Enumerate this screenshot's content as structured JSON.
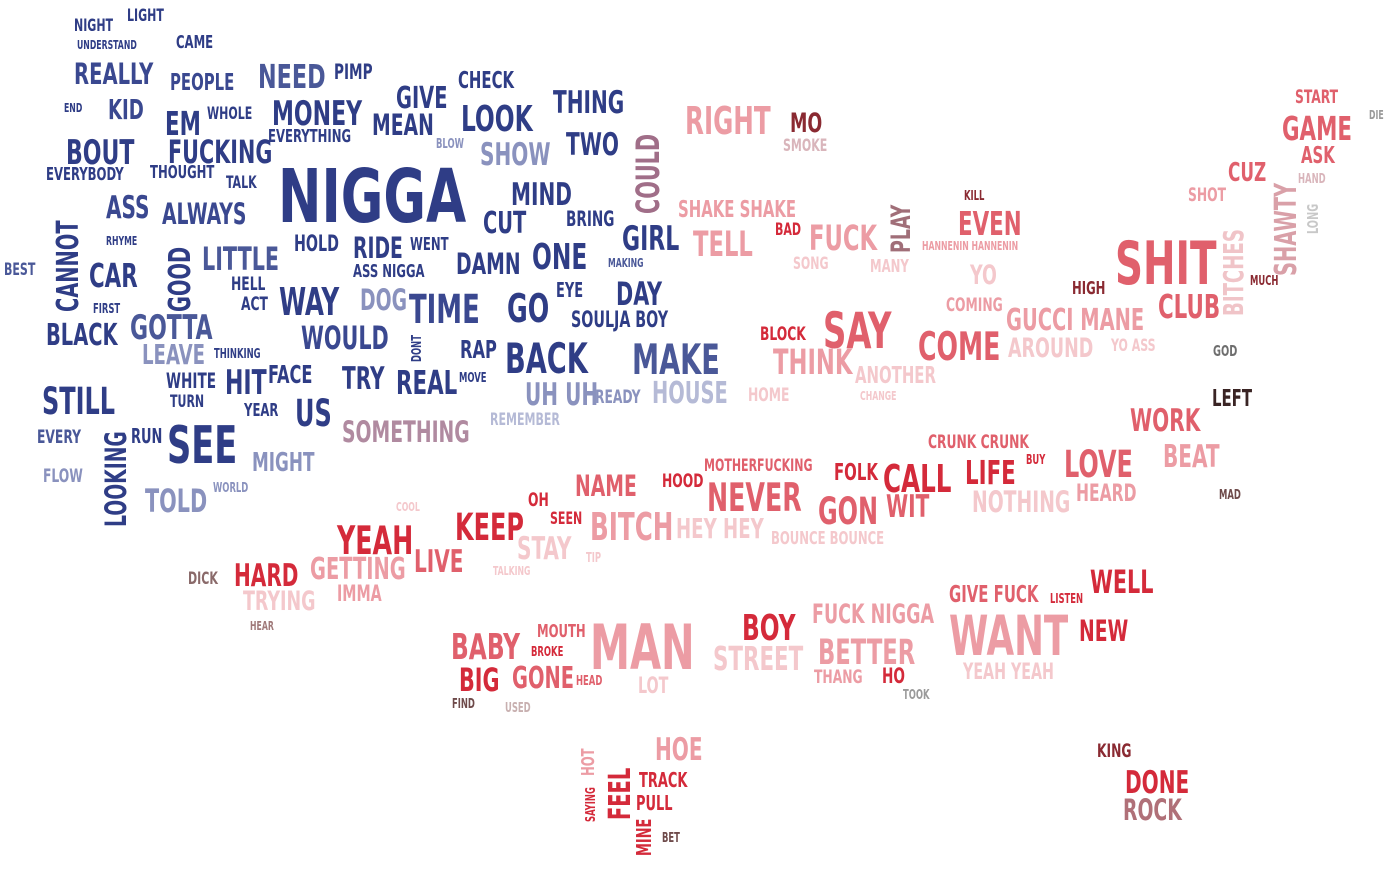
{
  "palette": {
    "blue_dark": "#2f3d86",
    "blue_mid": "#4a5898",
    "blue_light": "#8a92be",
    "blue_pale": "#b5bad6",
    "mauve": "#a06e88",
    "red_dark": "#d42a3a",
    "red_mid": "#e0606c",
    "pink": "#ec9ca4",
    "pink_pale": "#f4c8cc",
    "maroon": "#6e2a2e",
    "brown": "#8a6a6a",
    "grey": "#9a9a9a"
  },
  "words": [
    {
      "text": "NIGGA",
      "color": "#2f3d86"
    },
    {
      "text": "NIGHT",
      "color": "#2f3d86"
    },
    {
      "text": "LIGHT",
      "color": "#2f3d86"
    },
    {
      "text": "UNDERSTAND",
      "color": "#2f3d86"
    },
    {
      "text": "CAME",
      "color": "#2f3d86"
    },
    {
      "text": "REALLY",
      "color": "#3a4890"
    },
    {
      "text": "PEOPLE",
      "color": "#3a4890"
    },
    {
      "text": "NEED",
      "color": "#4a5898"
    },
    {
      "text": "PIMP",
      "color": "#2f3d86"
    },
    {
      "text": "GIVE",
      "color": "#2f3d86"
    },
    {
      "text": "CHECK",
      "color": "#2f3d86"
    },
    {
      "text": "END",
      "color": "#2f3d86"
    },
    {
      "text": "KID",
      "color": "#3a4890"
    },
    {
      "text": "EM",
      "color": "#2f3d86"
    },
    {
      "text": "WHOLE",
      "color": "#2f3d86"
    },
    {
      "text": "MONEY",
      "color": "#2f3d86"
    },
    {
      "text": "MEAN",
      "color": "#2f3d86"
    },
    {
      "text": "LOOK",
      "color": "#2f3d86"
    },
    {
      "text": "THING",
      "color": "#2f3d86"
    },
    {
      "text": "COULD",
      "color": "#a06e88"
    },
    {
      "text": "BOUT",
      "color": "#2f3d86"
    },
    {
      "text": "FUCKING",
      "color": "#2f3d86"
    },
    {
      "text": "EVERYTHING",
      "color": "#2f3d86"
    },
    {
      "text": "BLOW",
      "color": "#8a92be"
    },
    {
      "text": "SHOW",
      "color": "#8a92be"
    },
    {
      "text": "TWO",
      "color": "#2f3d86"
    },
    {
      "text": "EVERYBODY",
      "color": "#2f3d86"
    },
    {
      "text": "THOUGHT",
      "color": "#2f3d86"
    },
    {
      "text": "TALK",
      "color": "#2f3d86"
    },
    {
      "text": "MIND",
      "color": "#2f3d86"
    },
    {
      "text": "CANNOT",
      "color": "#2f3d86"
    },
    {
      "text": "ASS",
      "color": "#3a4890"
    },
    {
      "text": "ALWAYS",
      "color": "#3a4890"
    },
    {
      "text": "CUT",
      "color": "#2f3d86"
    },
    {
      "text": "BRING",
      "color": "#2f3d86"
    },
    {
      "text": "GIRL",
      "color": "#2f3d86"
    },
    {
      "text": "RHYME",
      "color": "#2f3d86"
    },
    {
      "text": "HOLD",
      "color": "#2f3d86"
    },
    {
      "text": "RIDE",
      "color": "#2f3d86"
    },
    {
      "text": "WENT",
      "color": "#2f3d86"
    },
    {
      "text": "ONE",
      "color": "#2f3d86"
    },
    {
      "text": "BEST",
      "color": "#4a5898"
    },
    {
      "text": "CAR",
      "color": "#2f3d86"
    },
    {
      "text": "GOOD",
      "color": "#2f3d86"
    },
    {
      "text": "LITTLE",
      "color": "#4a5898"
    },
    {
      "text": "ASS NIGGA",
      "color": "#2f3d86"
    },
    {
      "text": "DAMN",
      "color": "#2f3d86"
    },
    {
      "text": "MAKING",
      "color": "#4a5898"
    },
    {
      "text": "HELL",
      "color": "#2f3d86"
    },
    {
      "text": "ACT",
      "color": "#2f3d86"
    },
    {
      "text": "WAY",
      "color": "#2f3d86"
    },
    {
      "text": "DOG",
      "color": "#8a92be"
    },
    {
      "text": "TIME",
      "color": "#3a4890"
    },
    {
      "text": "GO",
      "color": "#2f3d86"
    },
    {
      "text": "EYE",
      "color": "#2f3d86"
    },
    {
      "text": "DAY",
      "color": "#2f3d86"
    },
    {
      "text": "FIRST",
      "color": "#2f3d86"
    },
    {
      "text": "SOULJA BOY",
      "color": "#2f3d86"
    },
    {
      "text": "BLACK",
      "color": "#2f3d86"
    },
    {
      "text": "GOTTA",
      "color": "#4a5898"
    },
    {
      "text": "WOULD",
      "color": "#3a4890"
    },
    {
      "text": "DONT",
      "color": "#2f3d86"
    },
    {
      "text": "RAP",
      "color": "#2f3d86"
    },
    {
      "text": "BACK",
      "color": "#2f3d86"
    },
    {
      "text": "MAKE",
      "color": "#4a5898"
    },
    {
      "text": "LEAVE",
      "color": "#8a92be"
    },
    {
      "text": "THINKING",
      "color": "#2f3d86"
    },
    {
      "text": "WHITE",
      "color": "#2f3d86"
    },
    {
      "text": "HIT",
      "color": "#2f3d86"
    },
    {
      "text": "FACE",
      "color": "#2f3d86"
    },
    {
      "text": "TRY",
      "color": "#2f3d86"
    },
    {
      "text": "REAL",
      "color": "#2f3d86"
    },
    {
      "text": "MOVE",
      "color": "#2f3d86"
    },
    {
      "text": "TURN",
      "color": "#2f3d86"
    },
    {
      "text": "UH UH",
      "color": "#8a92be"
    },
    {
      "text": "READY",
      "color": "#8a92be"
    },
    {
      "text": "HOUSE",
      "color": "#b5bad6"
    },
    {
      "text": "STILL",
      "color": "#2f3d86"
    },
    {
      "text": "YEAR",
      "color": "#2f3d86"
    },
    {
      "text": "US",
      "color": "#2f3d86"
    },
    {
      "text": "SOMETHING",
      "color": "#b08aa0"
    },
    {
      "text": "REMEMBER",
      "color": "#b5bad6"
    },
    {
      "text": "EVERY",
      "color": "#4a5898"
    },
    {
      "text": "RUN",
      "color": "#2f3d86"
    },
    {
      "text": "LOOKING",
      "color": "#2f3d86"
    },
    {
      "text": "SEE",
      "color": "#2f3d86"
    },
    {
      "text": "MIGHT",
      "color": "#8a92be"
    },
    {
      "text": "FLOW",
      "color": "#8a92be"
    },
    {
      "text": "TOLD",
      "color": "#8a92be"
    },
    {
      "text": "WORLD",
      "color": "#8a92be"
    },
    {
      "text": "RIGHT",
      "color": "#ec9ca4"
    },
    {
      "text": "MO",
      "color": "#8a2a32"
    },
    {
      "text": "SMOKE",
      "color": "#d9b5bb"
    },
    {
      "text": "START",
      "color": "#e0606c"
    },
    {
      "text": "GAME",
      "color": "#e0606c"
    },
    {
      "text": "DIE",
      "color": "#9a9a9a"
    },
    {
      "text": "ASK",
      "color": "#e0606c"
    },
    {
      "text": "CUZ",
      "color": "#e0606c"
    },
    {
      "text": "HAND",
      "color": "#d9b5bb"
    },
    {
      "text": "SHAWTY",
      "color": "#d9a0a8"
    },
    {
      "text": "LONG",
      "color": "#c8c8c8"
    },
    {
      "text": "SHOT",
      "color": "#ec9ca4"
    },
    {
      "text": "BITCHES",
      "color": "#f0c4c8"
    },
    {
      "text": "SHAKE SHAKE",
      "color": "#ec9ca4"
    },
    {
      "text": "PLAY",
      "color": "#a06e78"
    },
    {
      "text": "KILL",
      "color": "#8a2a32"
    },
    {
      "text": "EVEN",
      "color": "#e0606c"
    },
    {
      "text": "TELL",
      "color": "#ec9ca4"
    },
    {
      "text": "BAD",
      "color": "#d42a3a"
    },
    {
      "text": "FUCK",
      "color": "#ec9ca4"
    },
    {
      "text": "HANNENIN HANNENIN",
      "color": "#ec9ca4"
    },
    {
      "text": "SHIT",
      "color": "#e0606c"
    },
    {
      "text": "SONG",
      "color": "#f4c8cc"
    },
    {
      "text": "MANY",
      "color": "#f4c8cc"
    },
    {
      "text": "YO",
      "color": "#f4c8cc"
    },
    {
      "text": "HIGH",
      "color": "#8a2a32"
    },
    {
      "text": "MUCH",
      "color": "#8a2a32"
    },
    {
      "text": "CLUB",
      "color": "#e0606c"
    },
    {
      "text": "COMING",
      "color": "#ec9ca4"
    },
    {
      "text": "GUCCI MANE",
      "color": "#ec9ca4"
    },
    {
      "text": "BLOCK",
      "color": "#d42a3a"
    },
    {
      "text": "SAY",
      "color": "#e0606c"
    },
    {
      "text": "THINK",
      "color": "#ec9ca4"
    },
    {
      "text": "COME",
      "color": "#e0606c"
    },
    {
      "text": "AROUND",
      "color": "#f4c8cc"
    },
    {
      "text": "YO ASS",
      "color": "#f4c8cc"
    },
    {
      "text": "GOD",
      "color": "#6e6e6e"
    },
    {
      "text": "ANOTHER",
      "color": "#f4c8cc"
    },
    {
      "text": "HOME",
      "color": "#f4c8cc"
    },
    {
      "text": "CHANGE",
      "color": "#f4c8cc"
    },
    {
      "text": "LEFT",
      "color": "#3a2424"
    },
    {
      "text": "WORK",
      "color": "#e0606c"
    },
    {
      "text": "CRUNK CRUNK",
      "color": "#e0606c"
    },
    {
      "text": "BEAT",
      "color": "#ec9ca4"
    },
    {
      "text": "BUY",
      "color": "#d42a3a"
    },
    {
      "text": "LOVE",
      "color": "#e0606c"
    },
    {
      "text": "LIFE",
      "color": "#d42a3a"
    },
    {
      "text": "CALL",
      "color": "#d42a3a"
    },
    {
      "text": "FOLK",
      "color": "#d42a3a"
    },
    {
      "text": "MOTHERFUCKING",
      "color": "#e0606c"
    },
    {
      "text": "HOOD",
      "color": "#d42a3a"
    },
    {
      "text": "NAME",
      "color": "#e0606c"
    },
    {
      "text": "NEVER",
      "color": "#e0606c"
    },
    {
      "text": "GON",
      "color": "#e0606c"
    },
    {
      "text": "WIT",
      "color": "#e0606c"
    },
    {
      "text": "NOTHING",
      "color": "#f4c8cc"
    },
    {
      "text": "HEARD",
      "color": "#ec9ca4"
    },
    {
      "text": "MAD",
      "color": "#6e4a4a"
    },
    {
      "text": "COOL",
      "color": "#f4c8cc"
    },
    {
      "text": "OH",
      "color": "#d42a3a"
    },
    {
      "text": "SEEN",
      "color": "#d42a3a"
    },
    {
      "text": "KEEP",
      "color": "#d42a3a"
    },
    {
      "text": "BITCH",
      "color": "#ec9ca4"
    },
    {
      "text": "HEY HEY",
      "color": "#f4c8cc"
    },
    {
      "text": "BOUNCE BOUNCE",
      "color": "#f4c8cc"
    },
    {
      "text": "YEAH",
      "color": "#d42a3a"
    },
    {
      "text": "STAY",
      "color": "#f4c8cc"
    },
    {
      "text": "TIP",
      "color": "#f4c8cc"
    },
    {
      "text": "LIVE",
      "color": "#e0606c"
    },
    {
      "text": "TALKING",
      "color": "#f4c8cc"
    },
    {
      "text": "DICK",
      "color": "#8a6a6a"
    },
    {
      "text": "HARD",
      "color": "#d42a3a"
    },
    {
      "text": "GETTING",
      "color": "#ec9ca4"
    },
    {
      "text": "TRYING",
      "color": "#f4c8cc"
    },
    {
      "text": "IMMA",
      "color": "#ec9ca4"
    },
    {
      "text": "HEAR",
      "color": "#a07a7a"
    },
    {
      "text": "GIVE FUCK",
      "color": "#e0606c"
    },
    {
      "text": "LISTEN",
      "color": "#d42a3a"
    },
    {
      "text": "WELL",
      "color": "#d42a3a"
    },
    {
      "text": "FUCK NIGGA",
      "color": "#ec9ca4"
    },
    {
      "text": "WANT",
      "color": "#ec9ca4"
    },
    {
      "text": "NEW",
      "color": "#d42a3a"
    },
    {
      "text": "MOUTH",
      "color": "#e0606c"
    },
    {
      "text": "BOY",
      "color": "#d42a3a"
    },
    {
      "text": "BABY",
      "color": "#e0606c"
    },
    {
      "text": "BROKE",
      "color": "#d42a3a"
    },
    {
      "text": "MAN",
      "color": "#ec9ca4"
    },
    {
      "text": "STREET",
      "color": "#f4c8cc"
    },
    {
      "text": "BETTER",
      "color": "#ec9ca4"
    },
    {
      "text": "YEAH YEAH",
      "color": "#f4c8cc"
    },
    {
      "text": "BIG",
      "color": "#d42a3a"
    },
    {
      "text": "GONE",
      "color": "#e0606c"
    },
    {
      "text": "HEAD",
      "color": "#e0606c"
    },
    {
      "text": "LOT",
      "color": "#f4c8cc"
    },
    {
      "text": "THANG",
      "color": "#ec9ca4"
    },
    {
      "text": "HO",
      "color": "#d42a3a"
    },
    {
      "text": "TOOK",
      "color": "#9a9a9a"
    },
    {
      "text": "FIND",
      "color": "#6e4a4a"
    },
    {
      "text": "USED",
      "color": "#c8b0b0"
    },
    {
      "text": "HOE",
      "color": "#ec9ca4"
    },
    {
      "text": "HOT",
      "color": "#ec9ca4"
    },
    {
      "text": "SAYING",
      "color": "#d42a3a"
    },
    {
      "text": "FEEL",
      "color": "#d42a3a"
    },
    {
      "text": "TRACK",
      "color": "#d42a3a"
    },
    {
      "text": "PULL",
      "color": "#d42a3a"
    },
    {
      "text": "MINE",
      "color": "#d42a3a"
    },
    {
      "text": "BET",
      "color": "#6e4a4a"
    },
    {
      "text": "KING",
      "color": "#8a2a32"
    },
    {
      "text": "DONE",
      "color": "#d42a3a"
    },
    {
      "text": "ROCK",
      "color": "#b07078"
    }
  ]
}
